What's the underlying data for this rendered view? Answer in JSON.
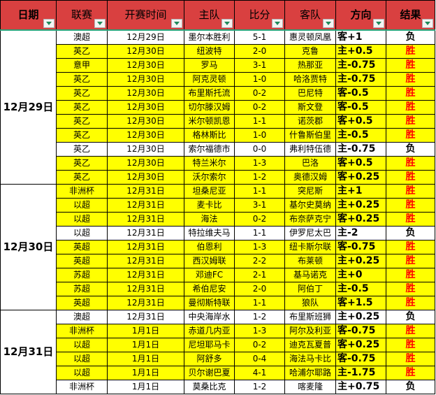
{
  "headers": [
    "日期",
    "联赛",
    "开赛时间",
    "主队",
    "比分",
    "客队",
    "方向",
    "结果"
  ],
  "colors": {
    "header": "#d94040",
    "win_row": "#ffff00",
    "win_text": "#ff0000",
    "loss_text": "#000000"
  },
  "groups": [
    {
      "date": "12月29日",
      "rows": [
        [
          "澳超",
          "12月29日",
          "墨尔本胜利",
          "5-1",
          "惠灵顿凤凰",
          "客+1",
          "负"
        ],
        [
          "英乙",
          "12月30日",
          "纽波特",
          "2-0",
          "克鲁",
          "主+0.5",
          "胜"
        ],
        [
          "意甲",
          "12月30日",
          "罗马",
          "3-1",
          "热那亚",
          "主-0.75",
          "胜"
        ],
        [
          "英乙",
          "12月30日",
          "阿克灵顿",
          "1-0",
          "哈洛贾特",
          "主-0.75",
          "胜"
        ],
        [
          "英乙",
          "12月30日",
          "布里斯托流",
          "0-2",
          "巴尼特",
          "客-0.5",
          "胜"
        ],
        [
          "英乙",
          "12月30日",
          "切尔滕汉姆",
          "0-2",
          "斯文登",
          "客-0.5",
          "胜"
        ],
        [
          "英乙",
          "12月30日",
          "米尔顿凯恩",
          "1-1",
          "诺茨郡",
          "客+0.5",
          "胜"
        ],
        [
          "英乙",
          "12月30日",
          "格林斯比",
          "1-0",
          "什鲁斯伯里",
          "主-0.5",
          "胜"
        ],
        [
          "英乙",
          "12月30日",
          "索尔福德市",
          "0-0",
          "弗利特伍德",
          "主-0.75",
          "负"
        ],
        [
          "英乙",
          "12月30日",
          "特兰米尔",
          "1-3",
          "巴洛",
          "客+0.5",
          "胜"
        ],
        [
          "英乙",
          "12月30日",
          "沃尔索尔",
          "1-2",
          "奥德汉姆",
          "客+0.25",
          "胜"
        ]
      ]
    },
    {
      "date": "12月30日",
      "rows": [
        [
          "非洲杯",
          "12月31日",
          "坦桑尼亚",
          "1-1",
          "突尼斯",
          "主+1",
          "胜"
        ],
        [
          "以超",
          "12月31日",
          "麦卡比",
          "3-1",
          "基尔史莫纳",
          "主+0.25",
          "胜"
        ],
        [
          "以超",
          "12月31日",
          "海法",
          "0-2",
          "布奈萨克宁",
          "客+0.25",
          "胜"
        ],
        [
          "以超",
          "12月31日",
          "特拉维夫马",
          "1-1",
          "伊罗尼太巴",
          "主-2",
          "负"
        ],
        [
          "英超",
          "12月31日",
          "伯恩利",
          "1-3",
          "纽卡斯尔联",
          "客-0.75",
          "胜"
        ],
        [
          "英超",
          "12月31日",
          "西汉姆联",
          "2-2",
          "布莱顿",
          "主+0.25",
          "胜"
        ],
        [
          "苏超",
          "12月31日",
          "邓迪FC",
          "2-1",
          "基马诺克",
          "主+0",
          "胜"
        ],
        [
          "苏超",
          "12月31日",
          "希伯尼安",
          "2-0",
          "阿伯丁",
          "主-0.5",
          "胜"
        ],
        [
          "英超",
          "12月31日",
          "曼彻斯特联",
          "1-1",
          "狼队",
          "客+1.5",
          "胜"
        ]
      ]
    },
    {
      "date": "12月31日",
      "rows": [
        [
          "澳超",
          "12月31日",
          "中央海岸水",
          "1-2",
          "布里斯班狮",
          "主+0.25",
          "负"
        ],
        [
          "非洲杯",
          "1月1日",
          "赤道几内亚",
          "1-3",
          "阿尔及利亚",
          "客-0.75",
          "胜"
        ],
        [
          "以超",
          "1月1日",
          "尼坦耶马卡",
          "0-2",
          "迪克瓦夏普",
          "客+0.25",
          "胜"
        ],
        [
          "以超",
          "1月1日",
          "阿舒多",
          "0-4",
          "海法马卡比",
          "客-0.75",
          "胜"
        ],
        [
          "以超",
          "1月1日",
          "贝尔谢巴夏",
          "4-1",
          "哈浦尔耶路",
          "主-1.75",
          "胜"
        ],
        [
          "非洲杯",
          "1月1日",
          "莫桑比克",
          "1-2",
          "喀麦隆",
          "主+0.75",
          "负"
        ]
      ]
    }
  ]
}
